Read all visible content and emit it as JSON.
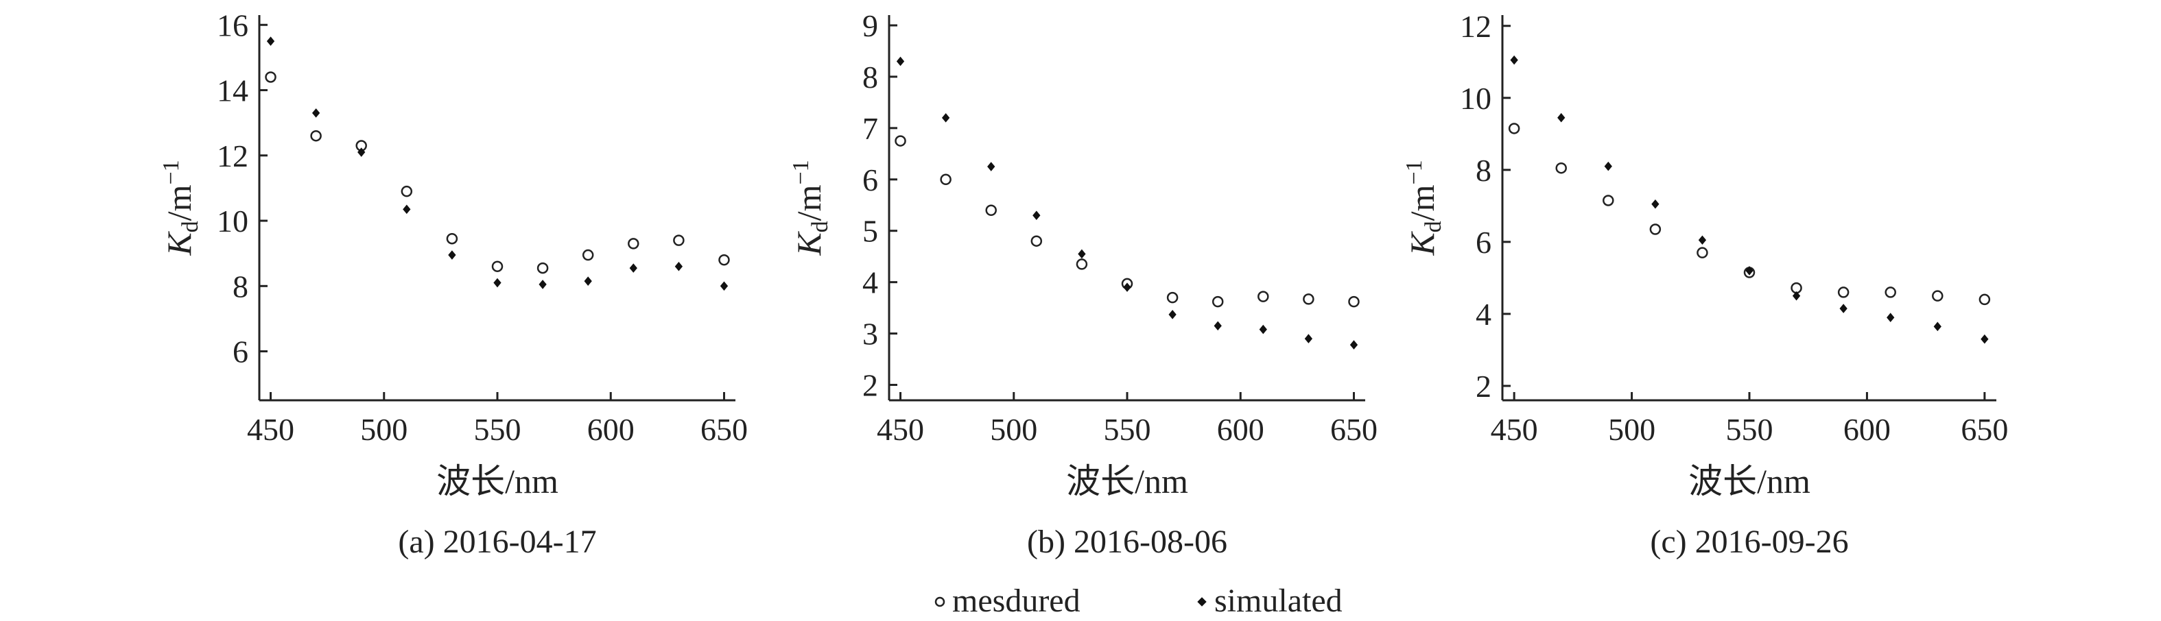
{
  "chart_data": [
    {
      "type": "scatter",
      "panel": "a",
      "caption": "(a) 2016-04-17",
      "xlabel": "波长/nm",
      "ylabel_main": "K",
      "ylabel_sub": "d",
      "ylabel_unit": "/m",
      "ylabel_sup": "−1",
      "xlim": [
        445,
        655
      ],
      "ylim": [
        4.5,
        16.3
      ],
      "xticks": [
        450,
        500,
        550,
        600,
        650
      ],
      "yticks": [
        6,
        8,
        10,
        12,
        14,
        16
      ],
      "x": [
        450,
        470,
        490,
        510,
        530,
        550,
        570,
        590,
        610,
        630,
        650
      ],
      "series": [
        {
          "name": "mesdured",
          "marker": "open-circle",
          "values": [
            14.4,
            12.6,
            12.3,
            10.9,
            9.45,
            8.6,
            8.55,
            8.95,
            9.3,
            9.4,
            8.8
          ]
        },
        {
          "name": "simulated",
          "marker": "filled-diamond",
          "values": [
            15.5,
            13.3,
            12.1,
            10.35,
            8.95,
            8.1,
            8.05,
            8.15,
            8.55,
            8.6,
            8.0
          ]
        }
      ]
    },
    {
      "type": "scatter",
      "panel": "b",
      "caption": "(b) 2016-08-06",
      "xlabel": "波长/nm",
      "ylabel_main": "K",
      "ylabel_sub": "d",
      "ylabel_unit": "/m",
      "ylabel_sup": "−1",
      "xlim": [
        445,
        655
      ],
      "ylim": [
        1.7,
        9.2
      ],
      "xticks": [
        450,
        500,
        550,
        600,
        650
      ],
      "yticks": [
        2,
        3,
        4,
        5,
        6,
        7,
        8,
        9
      ],
      "x": [
        450,
        470,
        490,
        510,
        530,
        550,
        570,
        590,
        610,
        630,
        650
      ],
      "series": [
        {
          "name": "mesdured",
          "marker": "open-circle",
          "values": [
            6.75,
            6.0,
            5.4,
            4.8,
            4.35,
            3.97,
            3.7,
            3.62,
            3.72,
            3.67,
            3.62
          ]
        },
        {
          "name": "simulated",
          "marker": "filled-diamond",
          "values": [
            8.3,
            7.2,
            6.25,
            5.3,
            4.55,
            3.9,
            3.37,
            3.15,
            3.08,
            2.9,
            2.78
          ]
        }
      ]
    },
    {
      "type": "scatter",
      "panel": "c",
      "caption": "(c) 2016-09-26",
      "xlabel": "波长/nm",
      "ylabel_main": "K",
      "ylabel_sub": "d",
      "ylabel_unit": "/m",
      "ylabel_sup": "−1",
      "xlim": [
        445,
        655
      ],
      "ylim": [
        1.6,
        12.3
      ],
      "xticks": [
        450,
        500,
        550,
        600,
        650
      ],
      "yticks": [
        2,
        4,
        6,
        8,
        10,
        12
      ],
      "x": [
        450,
        470,
        490,
        510,
        530,
        550,
        570,
        590,
        610,
        630,
        650
      ],
      "series": [
        {
          "name": "mesdured",
          "marker": "open-circle",
          "values": [
            9.15,
            8.05,
            7.15,
            6.35,
            5.7,
            5.15,
            4.72,
            4.6,
            4.6,
            4.5,
            4.4
          ]
        },
        {
          "name": "simulated",
          "marker": "filled-diamond",
          "values": [
            11.05,
            9.45,
            8.1,
            7.05,
            6.05,
            5.2,
            4.5,
            4.15,
            3.9,
            3.65,
            3.3
          ]
        }
      ]
    }
  ],
  "legend": {
    "measured_label": "mesdured",
    "simulated_label": "simulated"
  }
}
